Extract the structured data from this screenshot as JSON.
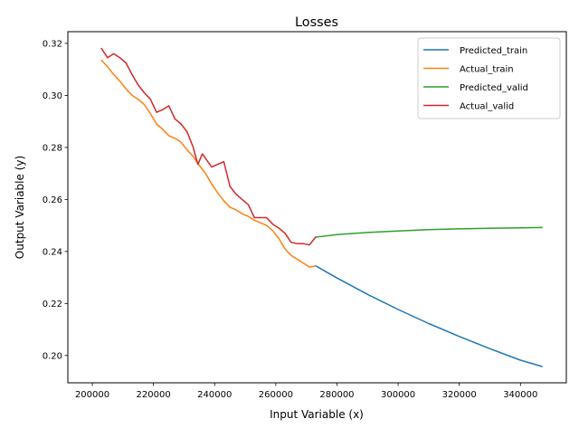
{
  "chart_data": {
    "type": "line",
    "title": "Losses",
    "xlabel": "Input Variable (x)",
    "ylabel": "Output Variable (y)",
    "xlim": [
      192000,
      355000
    ],
    "ylim": [
      0.1895,
      0.3245
    ],
    "xticks": [
      200000,
      220000,
      240000,
      260000,
      280000,
      300000,
      320000,
      340000
    ],
    "xtick_labels": [
      "200000",
      "220000",
      "240000",
      "260000",
      "280000",
      "300000",
      "320000",
      "340000"
    ],
    "yticks": [
      0.2,
      0.22,
      0.24,
      0.26,
      0.28,
      0.3,
      0.32
    ],
    "ytick_labels": [
      "0.20",
      "0.22",
      "0.24",
      "0.26",
      "0.28",
      "0.30",
      "0.32"
    ],
    "grid": false,
    "legend_position": "top-right",
    "series": [
      {
        "name": "Predicted_train",
        "color": "#1f77b4",
        "x": [
          273000,
          280000,
          290000,
          300000,
          310000,
          320000,
          330000,
          340000,
          347000
        ],
        "y": [
          0.2345,
          0.2298,
          0.2235,
          0.2177,
          0.2123,
          0.2073,
          0.2026,
          0.1982,
          0.1958
        ]
      },
      {
        "name": "Actual_train",
        "color": "#ff7f0e",
        "x": [
          203000,
          205000,
          207000,
          209000,
          211000,
          213000,
          215000,
          217000,
          219000,
          221000,
          223000,
          225000,
          227000,
          229000,
          231000,
          233000,
          235000,
          237000,
          239000,
          241000,
          243000,
          245000,
          247000,
          249000,
          251000,
          253000,
          255000,
          257000,
          259000,
          261000,
          263000,
          265000,
          267000,
          269000,
          271000,
          273000
        ],
        "y": [
          0.3135,
          0.311,
          0.308,
          0.3055,
          0.3025,
          0.3,
          0.2985,
          0.2965,
          0.293,
          0.289,
          0.287,
          0.2845,
          0.2835,
          0.282,
          0.279,
          0.2765,
          0.273,
          0.27,
          0.266,
          0.2625,
          0.2595,
          0.257,
          0.256,
          0.2545,
          0.2535,
          0.252,
          0.251,
          0.25,
          0.248,
          0.245,
          0.241,
          0.2385,
          0.237,
          0.2355,
          0.234,
          0.2345
        ]
      },
      {
        "name": "Predicted_valid",
        "color": "#2ca02c",
        "x": [
          273000,
          280000,
          290000,
          300000,
          310000,
          320000,
          330000,
          340000,
          347000
        ],
        "y": [
          0.2455,
          0.2465,
          0.2473,
          0.2479,
          0.2484,
          0.2487,
          0.2489,
          0.2491,
          0.2492
        ]
      },
      {
        "name": "Actual_valid",
        "color": "#d62728",
        "x": [
          203000,
          205000,
          207000,
          209000,
          211000,
          213000,
          215000,
          217000,
          219000,
          221000,
          223000,
          225000,
          227000,
          229000,
          231000,
          233000,
          234500,
          236000,
          239000,
          241000,
          243000,
          245000,
          247000,
          249000,
          251000,
          253000,
          255000,
          257000,
          259000,
          261000,
          263000,
          265000,
          267000,
          269000,
          271000,
          273000
        ],
        "y": [
          0.318,
          0.3145,
          0.316,
          0.3145,
          0.3125,
          0.308,
          0.304,
          0.301,
          0.2985,
          0.2935,
          0.2945,
          0.296,
          0.291,
          0.289,
          0.286,
          0.28,
          0.2735,
          0.2775,
          0.2725,
          0.2735,
          0.2745,
          0.265,
          0.262,
          0.26,
          0.258,
          0.253,
          0.253,
          0.253,
          0.2505,
          0.249,
          0.247,
          0.2435,
          0.243,
          0.243,
          0.2425,
          0.2455
        ]
      }
    ]
  }
}
